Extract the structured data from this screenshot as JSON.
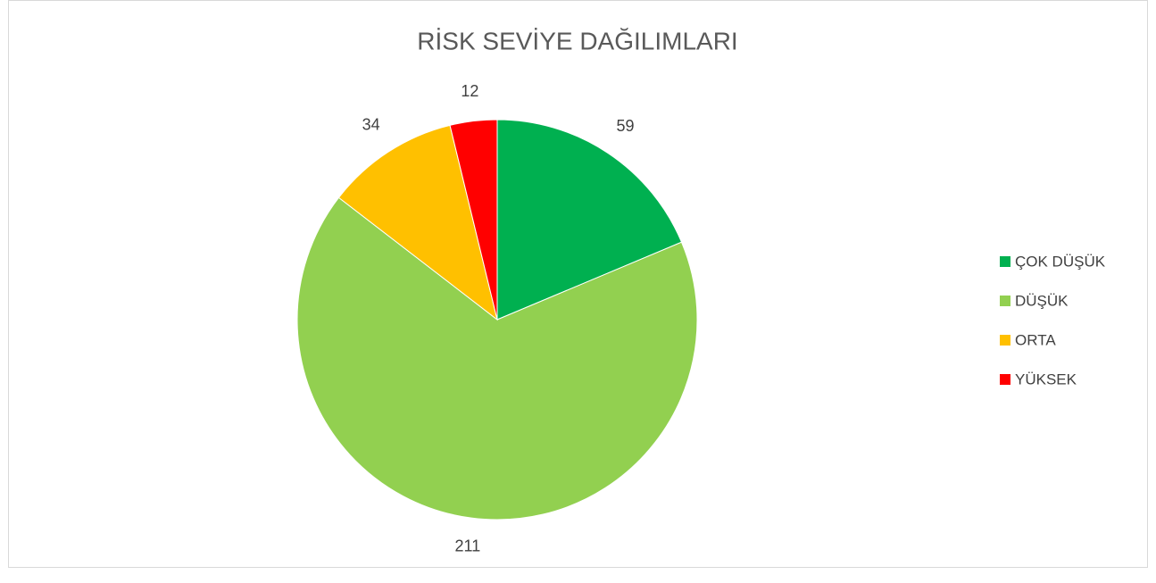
{
  "chart_data": {
    "type": "pie",
    "title": "RİSK SEVİYE DAĞILIMLARI",
    "categories": [
      "ÇOK DÜŞÜK",
      "DÜŞÜK",
      "ORTA",
      "YÜKSEK"
    ],
    "values": [
      59,
      211,
      34,
      12
    ],
    "colors": [
      "#00b050",
      "#92d050",
      "#ffc000",
      "#ff0000"
    ],
    "legend": "right"
  }
}
